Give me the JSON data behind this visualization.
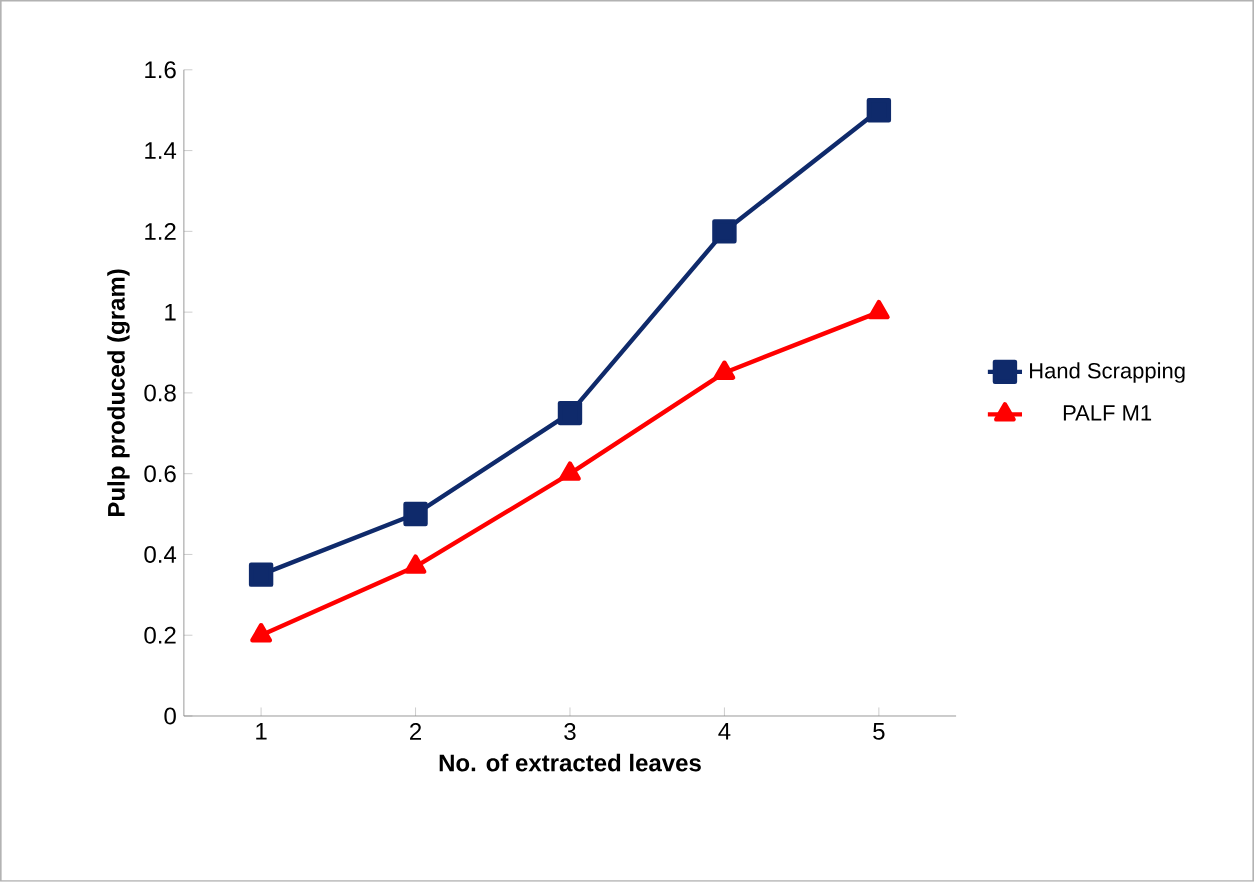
{
  "chart_data": {
    "type": "line",
    "xlabel": "No. of extracted leaves",
    "ylabel": "Pulp produced (gram)",
    "categories": [
      "1",
      "2",
      "3",
      "4",
      "5"
    ],
    "series": [
      {
        "name": "Hand Scrapping",
        "color": "#0f2a6b",
        "marker": "square",
        "values": [
          0.35,
          0.5,
          0.75,
          1.2,
          1.5
        ]
      },
      {
        "name": "PALF M1",
        "color": "#ff0000",
        "marker": "triangle",
        "values": [
          0.2,
          0.37,
          0.6,
          0.85,
          1.0
        ]
      }
    ],
    "ylim": [
      0,
      1.6
    ],
    "yticks": [
      0,
      {
        "value": 0.2,
        "label": "0.2"
      },
      {
        "value": 0.4,
        "label": "0.4"
      },
      {
        "value": 0.6,
        "label": "0.6"
      },
      {
        "value": 0.8,
        "label": "0.8"
      },
      1,
      {
        "value": 1.2,
        "label": "1.2"
      },
      {
        "value": 1.4,
        "label": "1.4"
      },
      {
        "value": 1.6,
        "label": "1.6"
      }
    ],
    "grid": false,
    "legend": "right",
    "line_style": "solid"
  }
}
